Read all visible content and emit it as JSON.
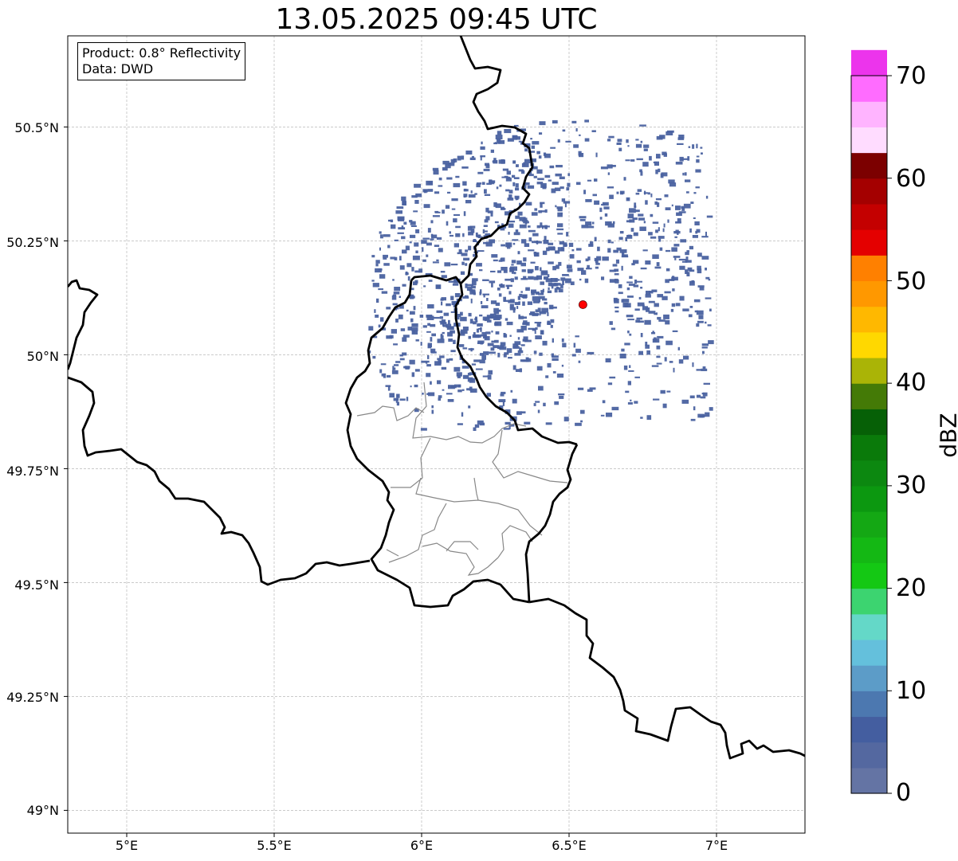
{
  "title": "13.05.2025 09:45 UTC",
  "info": {
    "product": "Product: 0.8° Reflectivity",
    "source": "Data: DWD"
  },
  "axes": {
    "lon_ticks": [
      "5°E",
      "5.5°E",
      "6°E",
      "6.5°E",
      "7°E"
    ],
    "lat_ticks": [
      "50.5°N",
      "50.25°N",
      "50°N",
      "49.75°N",
      "49.5°N",
      "49.25°N",
      "49°N"
    ],
    "lon_values": [
      5.0,
      5.5,
      6.0,
      6.5,
      7.0
    ],
    "lat_values": [
      50.5,
      50.25,
      50.0,
      49.75,
      49.5,
      49.25,
      49.0
    ],
    "lon_range": [
      4.8,
      7.3
    ],
    "lat_range": [
      48.95,
      50.7
    ],
    "grid": true
  },
  "radar_site": {
    "lon": 6.547,
    "lat": 50.11,
    "color": "#ff0000"
  },
  "echo_color": "#4a62a0",
  "colorbar": {
    "label": "dBZ",
    "ticks": [
      "0",
      "10",
      "20",
      "30",
      "40",
      "50",
      "60",
      "70"
    ],
    "tick_values": [
      0,
      10,
      20,
      30,
      40,
      50,
      60,
      70
    ],
    "range": [
      0,
      70
    ],
    "step": 2.5,
    "colors": [
      "#6474a4",
      "#5468a0",
      "#445ea0",
      "#4c78b0",
      "#5c9cc8",
      "#64c0dc",
      "#64d8c8",
      "#3cd470",
      "#14c814",
      "#14b814",
      "#14a814",
      "#0c9810",
      "#0c8810",
      "#0a7a0a",
      "#066006",
      "#447a06",
      "#aab406",
      "#ffd800",
      "#ffb800",
      "#ff9800",
      "#ff8000",
      "#e40000",
      "#c40000",
      "#a40000",
      "#7c0000",
      "#ffdcff",
      "#ffb4ff",
      "#ff6cff",
      "#ec34ec"
    ]
  }
}
